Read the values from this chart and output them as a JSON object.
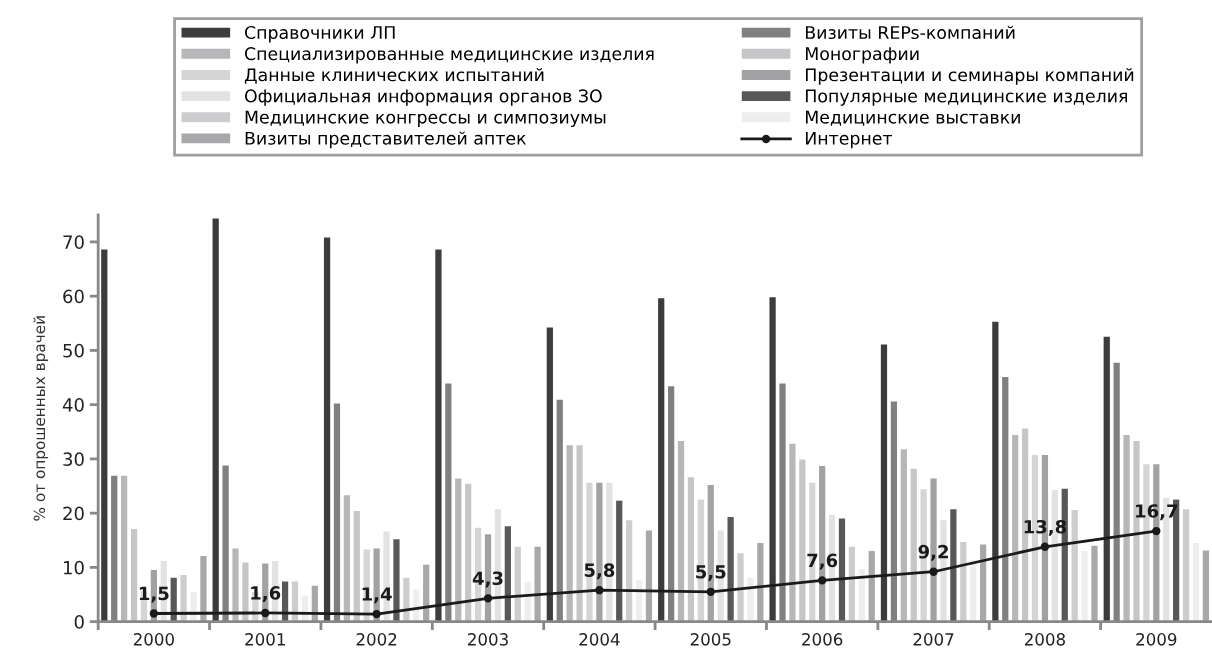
{
  "chart_data": {
    "type": "bar",
    "ylabel": "% от опрошенных врачей",
    "categories": [
      "2000",
      "2001",
      "2002",
      "2003",
      "2004",
      "2005",
      "2006",
      "2007",
      "2008",
      "2009"
    ],
    "ylim": [
      0,
      75
    ],
    "yticks": [
      0,
      10,
      20,
      30,
      40,
      50,
      60,
      70
    ],
    "grid": false,
    "legend": "top",
    "series": [
      {
        "name": "Справочники ЛП",
        "color": "#3c3c3c",
        "values": [
          68.6,
          74.3,
          70.8,
          68.6,
          54.2,
          59.6,
          59.8,
          51.1,
          55.3,
          52.5
        ]
      },
      {
        "name": "Визиты REPs-компаний",
        "color": "#808083",
        "values": [
          26.9,
          28.8,
          40.2,
          43.9,
          40.9,
          43.4,
          43.9,
          40.6,
          45.1,
          47.7
        ]
      },
      {
        "name": "Специализированные медицинские изделия",
        "color": "#b7b7b9",
        "values": [
          26.9,
          13.5,
          23.3,
          26.4,
          32.5,
          33.3,
          32.8,
          31.8,
          34.4,
          34.4
        ]
      },
      {
        "name": "Монографии",
        "color": "#c6c6c8",
        "values": [
          17.1,
          10.9,
          20.4,
          25.4,
          32.5,
          26.6,
          29.9,
          28.2,
          35.6,
          33.3
        ]
      },
      {
        "name": "Данные клинических испытаний",
        "color": "#d5d5d6",
        "values": [
          5.6,
          5.4,
          13.3,
          17.3,
          25.6,
          22.5,
          25.6,
          24.4,
          30.7,
          29.0
        ]
      },
      {
        "name": "Презентации и семинары компаний",
        "color": "#a2a2a5",
        "values": [
          9.5,
          10.7,
          13.5,
          16.1,
          25.6,
          25.2,
          28.7,
          26.4,
          30.7,
          29.0
        ]
      },
      {
        "name": "Официальная информация органов ЗО",
        "color": "#e2e2e3",
        "values": [
          11.2,
          11.2,
          16.6,
          20.7,
          25.6,
          16.8,
          19.7,
          18.7,
          24.2,
          22.8
        ]
      },
      {
        "name": "Популярные медицинские изделия",
        "color": "#58585a",
        "values": [
          8.1,
          7.4,
          15.2,
          17.6,
          22.3,
          19.3,
          19.0,
          20.7,
          24.5,
          22.5
        ]
      },
      {
        "name": "Медицинские конгрессы и симпозиумы",
        "color": "#cdcdcf",
        "values": [
          8.6,
          7.4,
          8.1,
          13.8,
          18.7,
          12.6,
          13.8,
          14.7,
          20.6,
          20.7
        ]
      },
      {
        "name": "Медицинские выставки",
        "color": "#eeeeef",
        "values": [
          5.5,
          4.8,
          5.9,
          7.3,
          7.6,
          8.1,
          9.7,
          11.4,
          13.0,
          14.5
        ]
      },
      {
        "name": "Визиты представителей аптек",
        "color": "#a8a8ab",
        "values": [
          12.1,
          6.6,
          10.5,
          13.8,
          16.8,
          14.5,
          13.0,
          14.2,
          14.0,
          13.1
        ]
      },
      {
        "name": "Интернет",
        "type": "line",
        "color": "#1a1a1a",
        "marker": "circle",
        "data_labels": true,
        "value_labels": [
          "1,5",
          "1,6",
          "1,4",
          "4,3",
          "5,8",
          "5,5",
          "7,6",
          "9,2",
          "13,8",
          "16,7"
        ],
        "values": [
          1.5,
          1.6,
          1.4,
          4.3,
          5.8,
          5.5,
          7.6,
          9.2,
          13.8,
          16.7
        ]
      }
    ]
  }
}
